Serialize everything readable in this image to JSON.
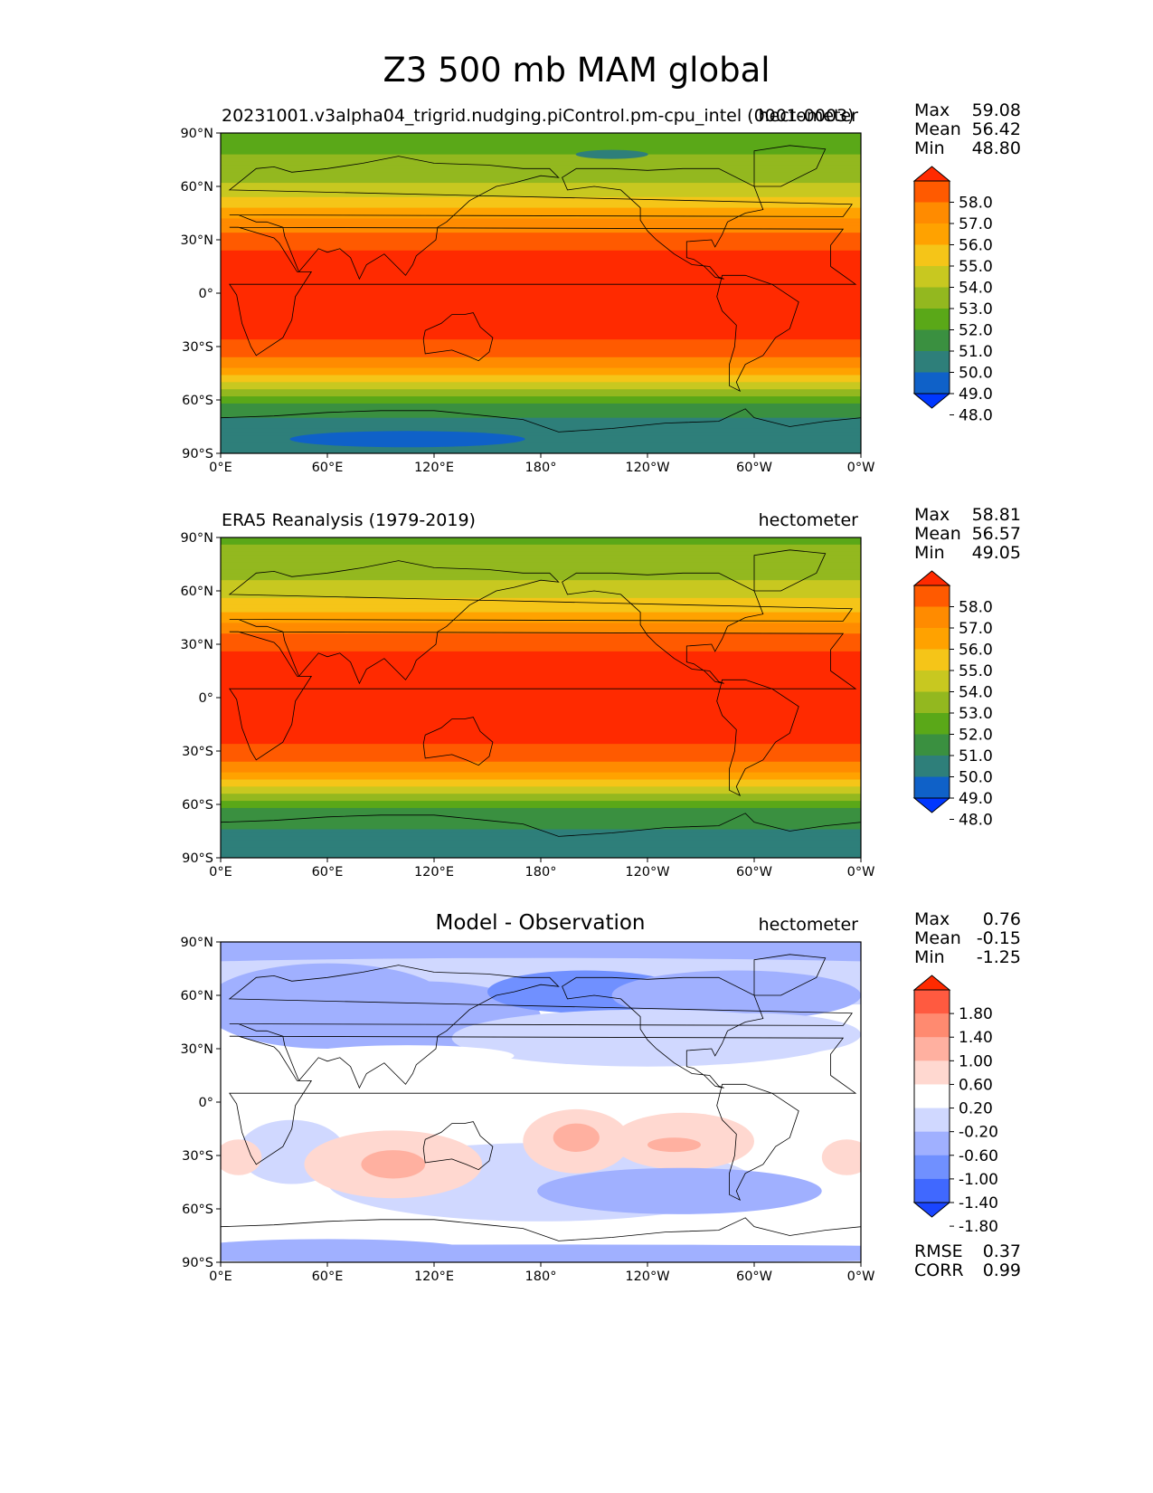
{
  "figure": {
    "title": "Z3 500 mb MAM global"
  },
  "chart_data": [
    {
      "type": "heatmap",
      "panel": "test",
      "title_left": "20231001.v3alpha04_trigrid.nudging.piControl.pm-cpu_intel (0001-0003)",
      "title_right": "hectometer",
      "stats": {
        "Max": "59.08",
        "Mean": "56.42",
        "Min": "48.80"
      },
      "xticks": [
        "0°E",
        "60°E",
        "120°E",
        "180°",
        "120°W",
        "60°W",
        "0°W"
      ],
      "yticks": [
        "90°N",
        "60°N",
        "30°N",
        "0°",
        "30°S",
        "60°S",
        "90°S"
      ],
      "xlim": [
        0,
        360
      ],
      "ylim": [
        -90,
        90
      ],
      "colorbar_levels": [
        "58.0",
        "57.0",
        "56.0",
        "55.0",
        "54.0",
        "53.0",
        "52.0",
        "51.0",
        "50.0",
        "49.0",
        "48.0"
      ],
      "colorbar_colors": [
        "#ff2a00",
        "#ff5a00",
        "#ff8b00",
        "#ffa200",
        "#f5c518",
        "#c8c820",
        "#93b81f",
        "#5aa818",
        "#3a9040",
        "#2e7f7a",
        "#0f61c8",
        "#0037ff"
      ],
      "zonal_mean_profile": {
        "lat": [
          90,
          80,
          70,
          60,
          50,
          40,
          30,
          20,
          0,
          -20,
          -30,
          -40,
          -50,
          -60,
          -70,
          -80,
          -90
        ],
        "value": [
          51.6,
          51.9,
          52.4,
          53.2,
          54.6,
          56.3,
          57.6,
          58.3,
          58.4,
          58.3,
          57.7,
          56.4,
          54.2,
          51.3,
          50.0,
          49.5,
          49.3
        ]
      }
    },
    {
      "type": "heatmap",
      "panel": "reference",
      "title_left": "ERA5 Reanalysis (1979-2019)",
      "title_right": "hectometer",
      "stats": {
        "Max": "58.81",
        "Mean": "56.57",
        "Min": "49.05"
      },
      "xticks": [
        "0°E",
        "60°E",
        "120°E",
        "180°",
        "120°W",
        "60°W",
        "0°W"
      ],
      "yticks": [
        "90°N",
        "60°N",
        "30°N",
        "0°",
        "30°S",
        "60°S",
        "90°S"
      ],
      "xlim": [
        0,
        360
      ],
      "ylim": [
        -90,
        90
      ],
      "colorbar_levels": [
        "58.0",
        "57.0",
        "56.0",
        "55.0",
        "54.0",
        "53.0",
        "52.0",
        "51.0",
        "50.0",
        "49.0",
        "48.0"
      ],
      "colorbar_colors": [
        "#ff2a00",
        "#ff5a00",
        "#ff8b00",
        "#ffa200",
        "#f5c518",
        "#c8c820",
        "#93b81f",
        "#5aa818",
        "#3a9040",
        "#2e7f7a",
        "#0f61c8",
        "#0037ff"
      ],
      "zonal_mean_profile": {
        "lat": [
          90,
          80,
          70,
          60,
          50,
          40,
          30,
          20,
          0,
          -20,
          -30,
          -40,
          -50,
          -60,
          -70,
          -80,
          -90
        ],
        "value": [
          51.9,
          52.2,
          52.7,
          53.4,
          54.8,
          56.5,
          57.7,
          58.3,
          58.4,
          58.3,
          57.8,
          56.6,
          54.3,
          51.2,
          50.1,
          49.9,
          49.8
        ]
      }
    },
    {
      "type": "heatmap",
      "panel": "difference",
      "title_center": "Model - Observation",
      "title_right": "hectometer",
      "stats": {
        "Max": "0.76",
        "Mean": "-0.15",
        "Min": "-1.25"
      },
      "metrics": {
        "RMSE": "0.37",
        "CORR": "0.99"
      },
      "xticks": [
        "0°E",
        "60°E",
        "120°E",
        "180°",
        "120°W",
        "60°W",
        "0°W"
      ],
      "yticks": [
        "90°N",
        "60°N",
        "30°N",
        "0°",
        "30°S",
        "60°S",
        "90°S"
      ],
      "xlim": [
        0,
        360
      ],
      "ylim": [
        -90,
        90
      ],
      "colorbar_levels": [
        "1.80",
        "1.40",
        "1.00",
        "0.60",
        "0.20",
        "-0.20",
        "-0.60",
        "-1.00",
        "-1.40",
        "-1.80"
      ],
      "colorbar_colors": [
        "#ff2a00",
        "#ff5a40",
        "#ff8a70",
        "#ffb0a0",
        "#ffd8d0",
        "#ffffff",
        "#d0d8ff",
        "#a0b0ff",
        "#7090ff",
        "#4068ff",
        "#1a45ff"
      ]
    }
  ]
}
